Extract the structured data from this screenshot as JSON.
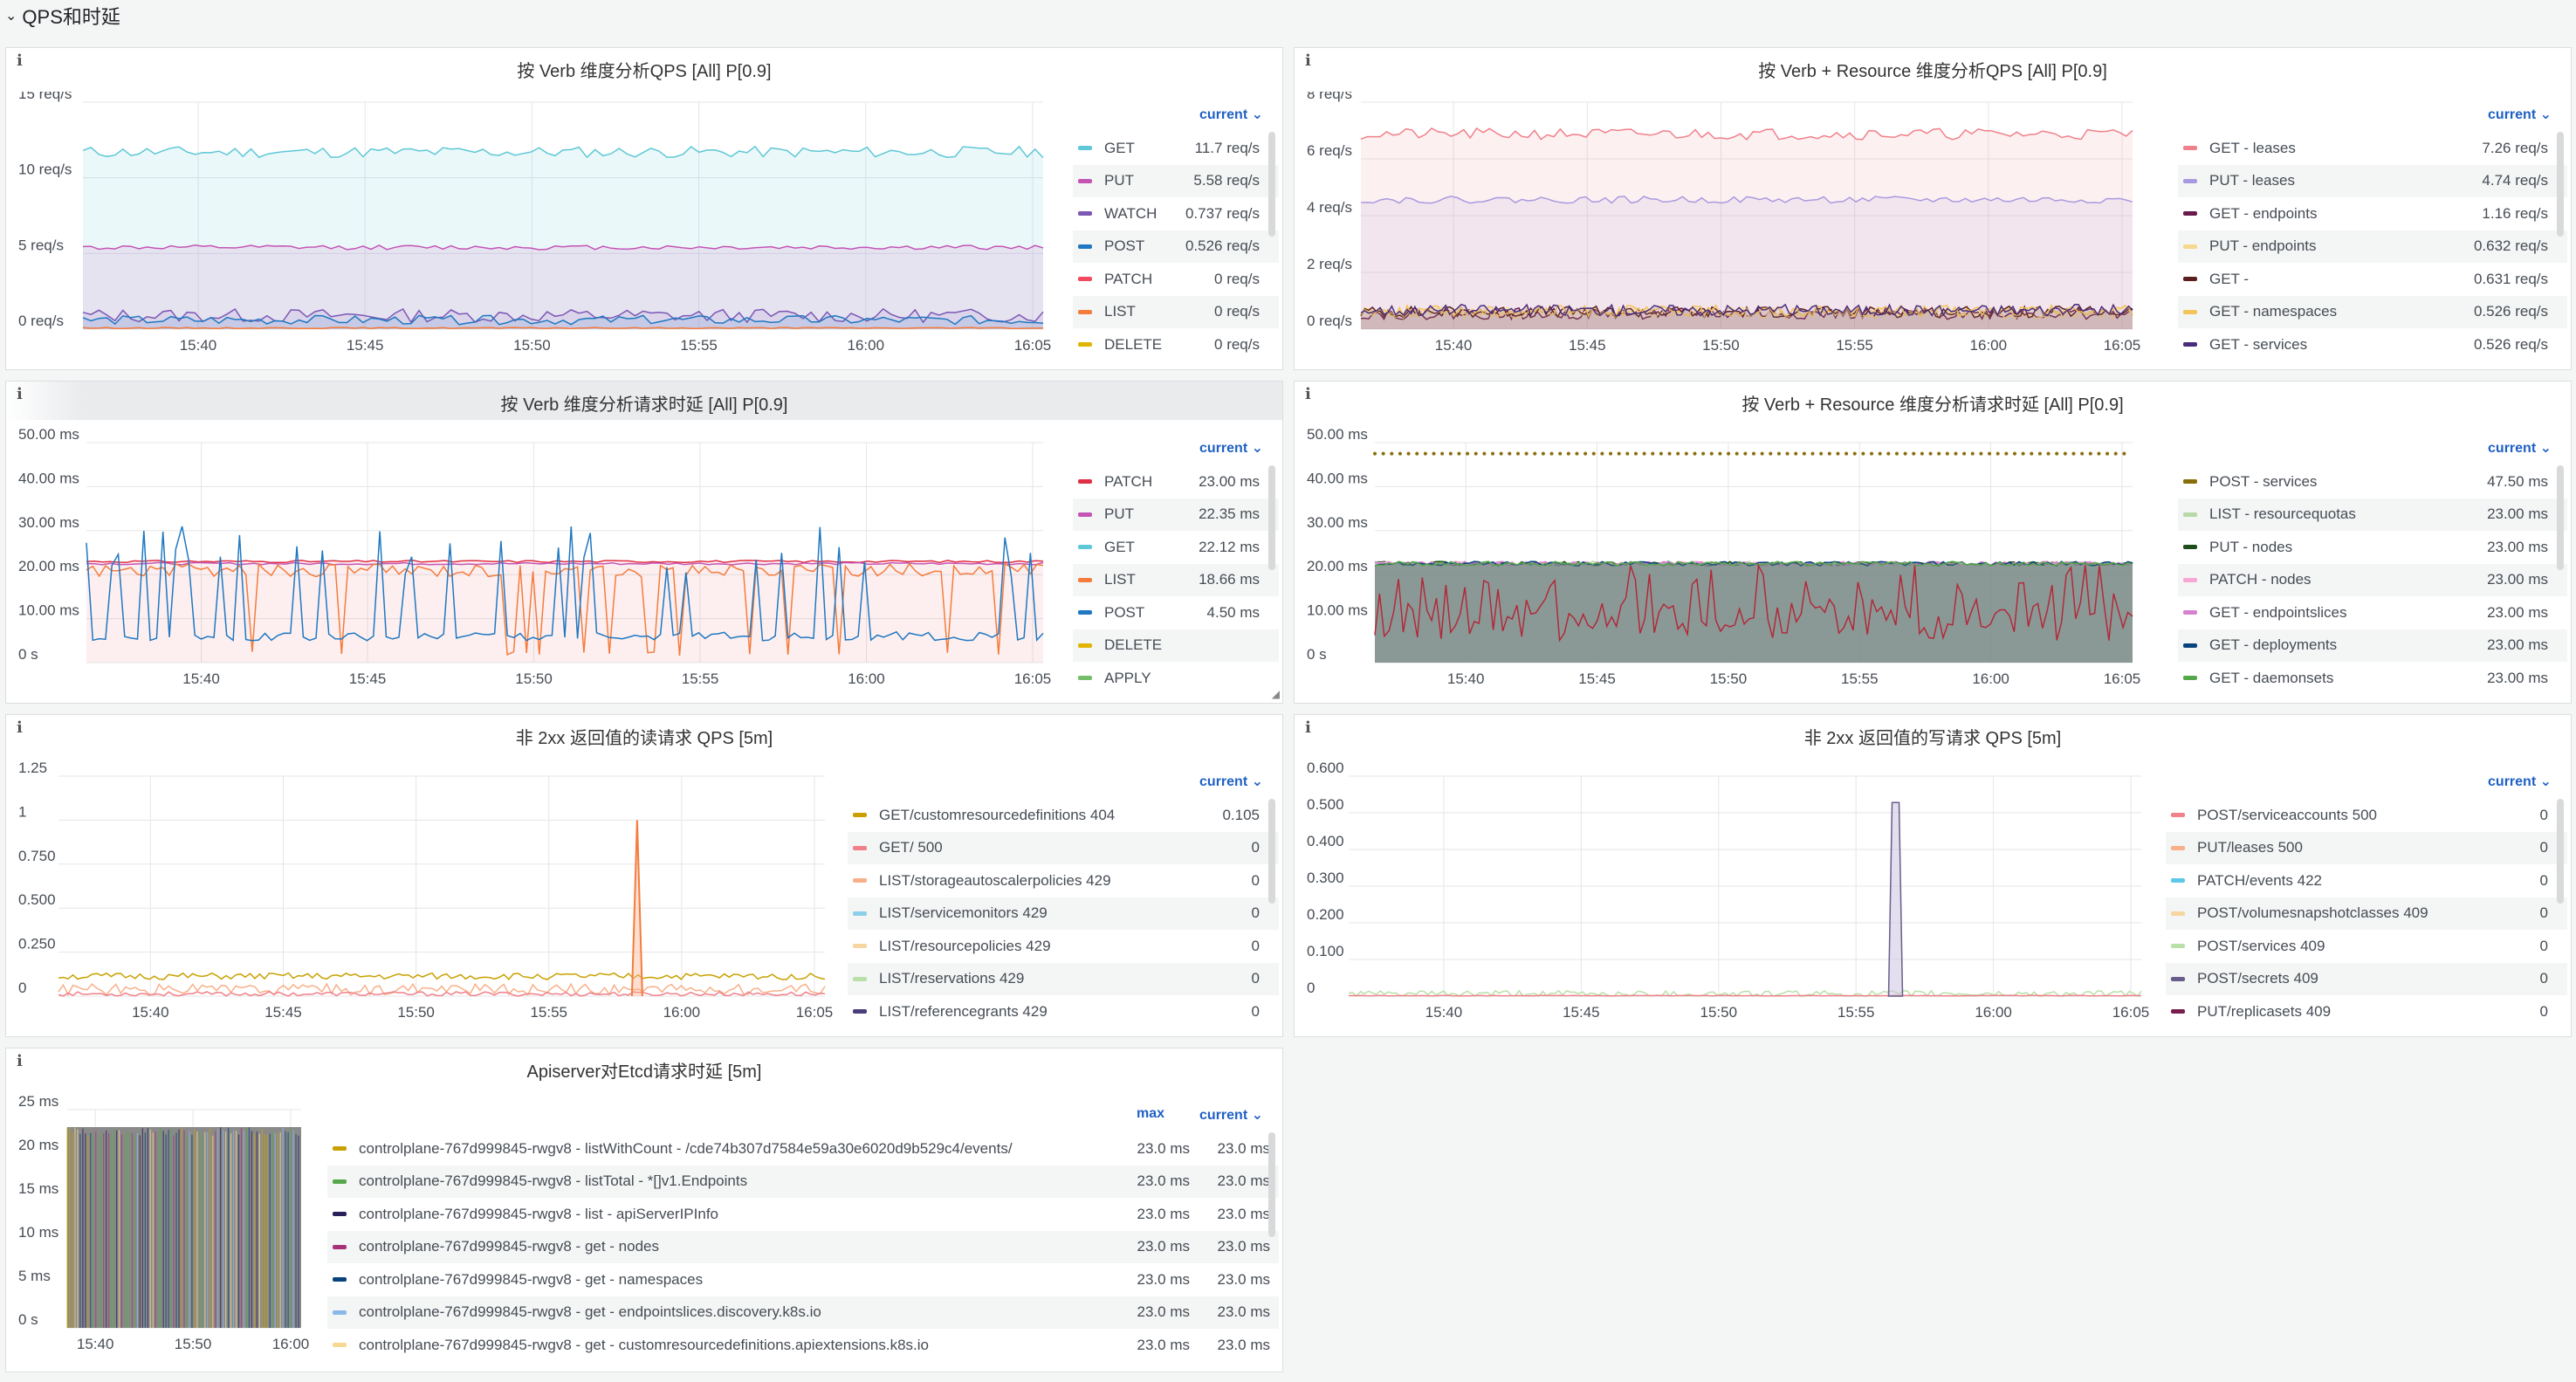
{
  "row": {
    "title": "QPS和时延"
  },
  "panels": [
    {
      "id": "p1",
      "title": "按 Verb 维度分析QPS [All] P[0.9]",
      "yticks": [
        "15 req/s",
        "10 req/s",
        "5 req/s",
        "0 req/s"
      ],
      "xticks": [
        "15:40",
        "15:45",
        "15:50",
        "15:55",
        "16:00",
        "16:05"
      ],
      "legend_headers": [
        "current"
      ],
      "legend": [
        {
          "name": "GET",
          "color": "#5ec8d6",
          "values": [
            "11.7 req/s"
          ]
        },
        {
          "name": "PUT",
          "color": "#c455b5",
          "values": [
            "5.58 req/s"
          ]
        },
        {
          "name": "WATCH",
          "color": "#7c58b4",
          "values": [
            "0.737 req/s"
          ]
        },
        {
          "name": "POST",
          "color": "#1f78c1",
          "values": [
            "0.526 req/s"
          ]
        },
        {
          "name": "PATCH",
          "color": "#f2495c",
          "values": [
            "0 req/s"
          ]
        },
        {
          "name": "LIST",
          "color": "#f47c3c",
          "values": [
            "0 req/s"
          ]
        },
        {
          "name": "DELETE",
          "color": "#e0b400",
          "values": [
            "0 req/s"
          ]
        }
      ]
    },
    {
      "id": "p2",
      "title": "按 Verb + Resource 维度分析QPS [All] P[0.9]",
      "yticks": [
        "8 req/s",
        "6 req/s",
        "4 req/s",
        "2 req/s",
        "0 req/s"
      ],
      "xticks": [
        "15:40",
        "15:45",
        "15:50",
        "15:55",
        "16:00",
        "16:05"
      ],
      "legend_headers": [
        "current"
      ],
      "legend": [
        {
          "name": "GET - leases",
          "color": "#f0808a",
          "values": [
            "7.26 req/s"
          ]
        },
        {
          "name": "PUT - leases",
          "color": "#a99ae0",
          "values": [
            "4.74 req/s"
          ]
        },
        {
          "name": "GET - endpoints",
          "color": "#6a1b4d",
          "values": [
            "1.16 req/s"
          ]
        },
        {
          "name": "PUT - endpoints",
          "color": "#f7d890",
          "values": [
            "0.632 req/s"
          ]
        },
        {
          "name": "GET -",
          "color": "#5c1f1f",
          "values": [
            "0.631 req/s"
          ]
        },
        {
          "name": "GET - namespaces",
          "color": "#f2c45a",
          "values": [
            "0.526 req/s"
          ]
        },
        {
          "name": "GET - services",
          "color": "#4a2d7a",
          "values": [
            "0.526 req/s"
          ]
        }
      ]
    },
    {
      "id": "p3",
      "title": "按 Verb 维度分析请求时延 [All] P[0.9]",
      "yticks": [
        "50.00 ms",
        "40.00 ms",
        "30.00 ms",
        "20.00 ms",
        "10.00 ms",
        "0 s"
      ],
      "xticks": [
        "15:40",
        "15:45",
        "15:50",
        "15:55",
        "16:00",
        "16:05"
      ],
      "legend_headers": [
        "current"
      ],
      "legend": [
        {
          "name": "PATCH",
          "color": "#e02f44",
          "values": [
            "23.00 ms"
          ]
        },
        {
          "name": "PUT",
          "color": "#c455b5",
          "values": [
            "22.35 ms"
          ]
        },
        {
          "name": "GET",
          "color": "#5ec8d6",
          "values": [
            "22.12 ms"
          ]
        },
        {
          "name": "LIST",
          "color": "#f47c3c",
          "values": [
            "18.66 ms"
          ]
        },
        {
          "name": "POST",
          "color": "#1f78c1",
          "values": [
            "4.50 ms"
          ]
        },
        {
          "name": "DELETE",
          "color": "#e0b400",
          "values": [
            ""
          ]
        },
        {
          "name": "APPLY",
          "color": "#73bf69",
          "values": [
            ""
          ]
        }
      ]
    },
    {
      "id": "p4",
      "title": "按 Verb + Resource 维度分析请求时延 [All] P[0.9]",
      "yticks": [
        "50.00 ms",
        "40.00 ms",
        "30.00 ms",
        "20.00 ms",
        "10.00 ms",
        "0 s"
      ],
      "xticks": [
        "15:40",
        "15:45",
        "15:50",
        "15:55",
        "16:00",
        "16:05"
      ],
      "legend_headers": [
        "current"
      ],
      "legend": [
        {
          "name": "POST - services",
          "color": "#8a6d0b",
          "values": [
            "47.50 ms"
          ]
        },
        {
          "name": "LIST - resourcequotas",
          "color": "#b8d8a8",
          "values": [
            "23.00 ms"
          ]
        },
        {
          "name": "PUT - nodes",
          "color": "#1e4d1a",
          "values": [
            "23.00 ms"
          ]
        },
        {
          "name": "PATCH - nodes",
          "color": "#f7a6d6",
          "values": [
            "23.00 ms"
          ]
        },
        {
          "name": "GET - endpointslices",
          "color": "#d683ce",
          "values": [
            "23.00 ms"
          ]
        },
        {
          "name": "GET - deployments",
          "color": "#0a437c",
          "values": [
            "23.00 ms"
          ]
        },
        {
          "name": "GET - daemonsets",
          "color": "#56a64b",
          "values": [
            "23.00 ms"
          ]
        }
      ]
    },
    {
      "id": "p5",
      "title": "非 2xx 返回值的读请求 QPS [5m]",
      "yticks": [
        "1.25",
        "1",
        "0.750",
        "0.500",
        "0.250",
        "0"
      ],
      "xticks": [
        "15:40",
        "15:45",
        "15:50",
        "15:55",
        "16:00",
        "16:05"
      ],
      "legend_headers": [
        "current"
      ],
      "legend": [
        {
          "name": "GET/customresourcedefinitions 404",
          "color": "#c9a000",
          "values": [
            "0.105"
          ]
        },
        {
          "name": "GET/ 500",
          "color": "#f0808a",
          "values": [
            "0"
          ]
        },
        {
          "name": "LIST/storageautoscalerpolicies 429",
          "color": "#f7b08a",
          "values": [
            "0"
          ]
        },
        {
          "name": "LIST/servicemonitors 429",
          "color": "#8ad0e8",
          "values": [
            "0"
          ]
        },
        {
          "name": "LIST/resourcepolicies 429",
          "color": "#f7d5a0",
          "values": [
            "0"
          ]
        },
        {
          "name": "LIST/reservations 429",
          "color": "#b8e0a8",
          "values": [
            "0"
          ]
        },
        {
          "name": "LIST/referencegrants 429",
          "color": "#4a3d7a",
          "values": [
            "0"
          ]
        }
      ]
    },
    {
      "id": "p6",
      "title": "非 2xx 返回值的写请求 QPS [5m]",
      "yticks": [
        "0.600",
        "0.500",
        "0.400",
        "0.300",
        "0.200",
        "0.100",
        "0"
      ],
      "xticks": [
        "15:40",
        "15:45",
        "15:50",
        "15:55",
        "16:00",
        "16:05"
      ],
      "legend_headers": [
        "current"
      ],
      "legend": [
        {
          "name": "POST/serviceaccounts 500",
          "color": "#f0808a",
          "values": [
            "0"
          ]
        },
        {
          "name": "PUT/leases 500",
          "color": "#f7b08a",
          "values": [
            "0"
          ]
        },
        {
          "name": "PATCH/events 422",
          "color": "#5ec8e8",
          "values": [
            "0"
          ]
        },
        {
          "name": "POST/volumesnapshotclasses 409",
          "color": "#f7d5a0",
          "values": [
            "0"
          ]
        },
        {
          "name": "POST/services 409",
          "color": "#b8e0a8",
          "values": [
            "0"
          ]
        },
        {
          "name": "POST/secrets 409",
          "color": "#6a5d8a",
          "values": [
            "0"
          ]
        },
        {
          "name": "PUT/replicasets 409",
          "color": "#7a1f4d",
          "values": [
            "0"
          ]
        }
      ]
    },
    {
      "id": "p7",
      "title": "Apiserver对Etcd请求时延 [5m]",
      "yticks": [
        "25 ms",
        "20 ms",
        "15 ms",
        "10 ms",
        "5 ms",
        "0 s"
      ],
      "xticks": [
        "15:40",
        "15:50",
        "16:00"
      ],
      "legend_headers": [
        "max",
        "current"
      ],
      "legend": [
        {
          "name": "controlplane-767d999845-rwgv8 - listWithCount - /cde74b307d7584e59a30e6020d9b529c4/events/",
          "color": "#c9a000",
          "values": [
            "23.0 ms",
            "23.0 ms"
          ]
        },
        {
          "name": "controlplane-767d999845-rwgv8 - listTotal - *[]v1.Endpoints",
          "color": "#56a64b",
          "values": [
            "23.0 ms",
            "23.0 ms"
          ]
        },
        {
          "name": "controlplane-767d999845-rwgv8 - list - apiServerIPInfo",
          "color": "#2a1f5a",
          "values": [
            "23.0 ms",
            "23.0 ms"
          ]
        },
        {
          "name": "controlplane-767d999845-rwgv8 - get - nodes",
          "color": "#a8327a",
          "values": [
            "23.0 ms",
            "23.0 ms"
          ]
        },
        {
          "name": "controlplane-767d999845-rwgv8 - get - namespaces",
          "color": "#0a437c",
          "values": [
            "23.0 ms",
            "23.0 ms"
          ]
        },
        {
          "name": "controlplane-767d999845-rwgv8 - get - endpointslices.discovery.k8s.io",
          "color": "#8ab8e8",
          "values": [
            "23.0 ms",
            "23.0 ms"
          ]
        },
        {
          "name": "controlplane-767d999845-rwgv8 - get - customresourcedefinitions.apiextensions.k8s.io",
          "color": "#f7d890",
          "values": [
            "23.0 ms",
            "23.0 ms"
          ]
        }
      ]
    }
  ]
}
